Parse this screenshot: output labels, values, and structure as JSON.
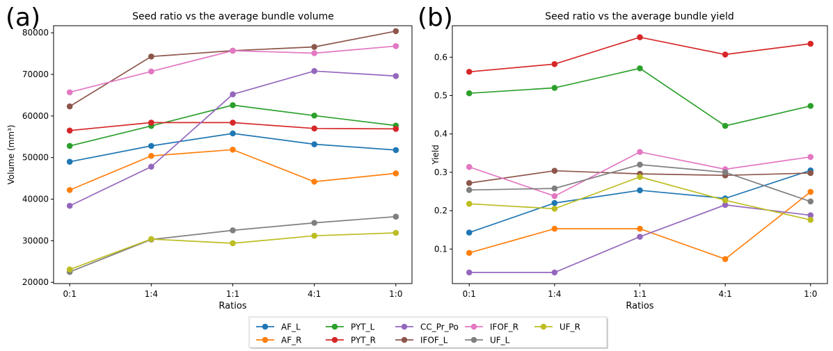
{
  "panels": [
    {
      "label": "(a)"
    },
    {
      "label": "(b)"
    }
  ],
  "legend": {
    "placement": "bottom-center",
    "entries": [
      {
        "name": "AF_L",
        "color": "#1f77b4"
      },
      {
        "name": "AF_R",
        "color": "#ff7f0e"
      },
      {
        "name": "PYT_L",
        "color": "#2ca02c"
      },
      {
        "name": "PYT_R",
        "color": "#d62728"
      },
      {
        "name": "CC_Pr_Po",
        "color": "#9467bd"
      },
      {
        "name": "IFOF_L",
        "color": "#8c564b"
      },
      {
        "name": "IFOF_R",
        "color": "#e377c2"
      },
      {
        "name": "UF_L",
        "color": "#7f7f7f"
      },
      {
        "name": "UF_R",
        "color": "#bcbd22"
      }
    ]
  },
  "chart_data": [
    {
      "type": "line",
      "title": "Seed ratio vs the average bundle volume",
      "xlabel": "Ratios",
      "ylabel": "Volume (mm³)",
      "categories": [
        "0:1",
        "1:4",
        "1:1",
        "4:1",
        "1:0"
      ],
      "ylim": [
        19700,
        81700
      ],
      "yticks": [
        20000,
        30000,
        40000,
        50000,
        60000,
        70000,
        80000
      ],
      "grid": false,
      "series": [
        {
          "name": "AF_L",
          "color": "#1f77b4",
          "values": [
            49000,
            52800,
            55800,
            53200,
            51800
          ]
        },
        {
          "name": "AF_R",
          "color": "#ff7f0e",
          "values": [
            42200,
            50400,
            51900,
            44200,
            46200
          ]
        },
        {
          "name": "PYT_L",
          "color": "#2ca02c",
          "values": [
            52800,
            57600,
            62600,
            60100,
            57700
          ]
        },
        {
          "name": "PYT_R",
          "color": "#d62728",
          "values": [
            56500,
            58400,
            58400,
            57000,
            56900
          ]
        },
        {
          "name": "CC_Pr_Po",
          "color": "#9467bd",
          "values": [
            38400,
            47800,
            65200,
            70800,
            69600
          ]
        },
        {
          "name": "IFOF_L",
          "color": "#8c564b",
          "values": [
            62300,
            74300,
            75700,
            76600,
            80400
          ]
        },
        {
          "name": "IFOF_R",
          "color": "#e377c2",
          "values": [
            65700,
            70700,
            75700,
            75100,
            76800
          ]
        },
        {
          "name": "UF_L",
          "color": "#7f7f7f",
          "values": [
            22500,
            30300,
            32500,
            34300,
            35800
          ]
        },
        {
          "name": "UF_R",
          "color": "#bcbd22",
          "values": [
            23100,
            30400,
            29400,
            31200,
            31900
          ]
        }
      ]
    },
    {
      "type": "line",
      "title": "Seed ratio vs the average bundle yield",
      "xlabel": "Ratios",
      "ylabel": "Yield",
      "categories": [
        "0:1",
        "1:4",
        "1:1",
        "4:1",
        "1:0"
      ],
      "ylim": [
        0.01,
        0.682
      ],
      "yticks": [
        "0.1",
        "0.2",
        "0.3",
        "0.4",
        "0.5",
        "0.6"
      ],
      "grid": false,
      "series": [
        {
          "name": "AF_L",
          "color": "#1f77b4",
          "values": [
            0.143,
            0.22,
            0.253,
            0.232,
            0.305
          ]
        },
        {
          "name": "AF_R",
          "color": "#ff7f0e",
          "values": [
            0.09,
            0.153,
            0.153,
            0.074,
            0.249
          ]
        },
        {
          "name": "PYT_L",
          "color": "#2ca02c",
          "values": [
            0.506,
            0.52,
            0.571,
            0.421,
            0.473
          ]
        },
        {
          "name": "PYT_R",
          "color": "#d62728",
          "values": [
            0.562,
            0.582,
            0.652,
            0.607,
            0.635
          ]
        },
        {
          "name": "CC_Pr_Po",
          "color": "#9467bd",
          "values": [
            0.039,
            0.039,
            0.132,
            0.215,
            0.188
          ]
        },
        {
          "name": "IFOF_L",
          "color": "#8c564b",
          "values": [
            0.272,
            0.304,
            0.296,
            0.292,
            0.298
          ]
        },
        {
          "name": "IFOF_R",
          "color": "#e377c2",
          "values": [
            0.314,
            0.238,
            0.353,
            0.308,
            0.34
          ]
        },
        {
          "name": "UF_L",
          "color": "#7f7f7f",
          "values": [
            0.254,
            0.258,
            0.32,
            0.3,
            0.224
          ]
        },
        {
          "name": "UF_R",
          "color": "#bcbd22",
          "values": [
            0.218,
            0.205,
            0.288,
            0.227,
            0.176
          ]
        }
      ]
    }
  ]
}
